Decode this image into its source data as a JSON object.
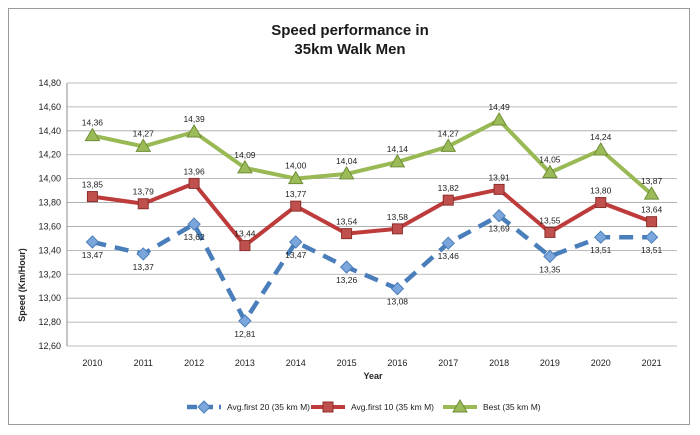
{
  "chart_data": {
    "type": "line",
    "title_lines": [
      "Speed performance in",
      "35km Walk Men"
    ],
    "xlabel": "Year",
    "ylabel": "Speed (Km/Hour)",
    "ylim": [
      12.6,
      14.8
    ],
    "ytick_step": 0.2,
    "grid": true,
    "legend_placement": "bottom",
    "categories": [
      "2010",
      "2011",
      "2012",
      "2013",
      "2014",
      "2015",
      "2016",
      "2017",
      "2018",
      "2019",
      "2020",
      "2021"
    ],
    "series": [
      {
        "name": "Avg.first 20 (35 km M)",
        "style": "dashed",
        "marker": "diamond",
        "color": "#4a7ebb",
        "values": [
          13.47,
          13.37,
          13.62,
          12.81,
          13.47,
          13.26,
          13.08,
          13.46,
          13.69,
          13.35,
          13.51,
          13.51
        ],
        "labels": [
          "13,47",
          "13,37",
          "13,62",
          "12,81",
          "13,47",
          "13,26",
          "13,08",
          "13,46",
          "13,69",
          "13,35",
          "13,51",
          "13,51"
        ]
      },
      {
        "name": "Avg.first 10 (35 km M)",
        "style": "solid",
        "marker": "square",
        "color": "#be3b3b",
        "values": [
          13.85,
          13.79,
          13.96,
          13.44,
          13.77,
          13.54,
          13.58,
          13.82,
          13.91,
          13.55,
          13.8,
          13.64
        ],
        "labels": [
          "13,85",
          "13,79",
          "13,96",
          "13,44",
          "13,77",
          "13,54",
          "13,58",
          "13,82",
          "13,91",
          "13,55",
          "13,80",
          "13,64"
        ]
      },
      {
        "name": "Best (35 km M)",
        "style": "solid",
        "marker": "triangle",
        "color": "#98b954",
        "values": [
          14.36,
          14.27,
          14.39,
          14.09,
          14.0,
          14.04,
          14.14,
          14.27,
          14.49,
          14.05,
          14.24,
          13.87
        ],
        "labels": [
          "14,36",
          "14,27",
          "14,39",
          "14,09",
          "14,00",
          "14,04",
          "14,14",
          "14,27",
          "14,49",
          "14,05",
          "14,24",
          "13,87"
        ]
      }
    ],
    "yticks": [
      "12,60",
      "12,80",
      "13,00",
      "13,20",
      "13,40",
      "13,60",
      "13,80",
      "14,00",
      "14,20",
      "14,40",
      "14,60",
      "14,80"
    ]
  }
}
